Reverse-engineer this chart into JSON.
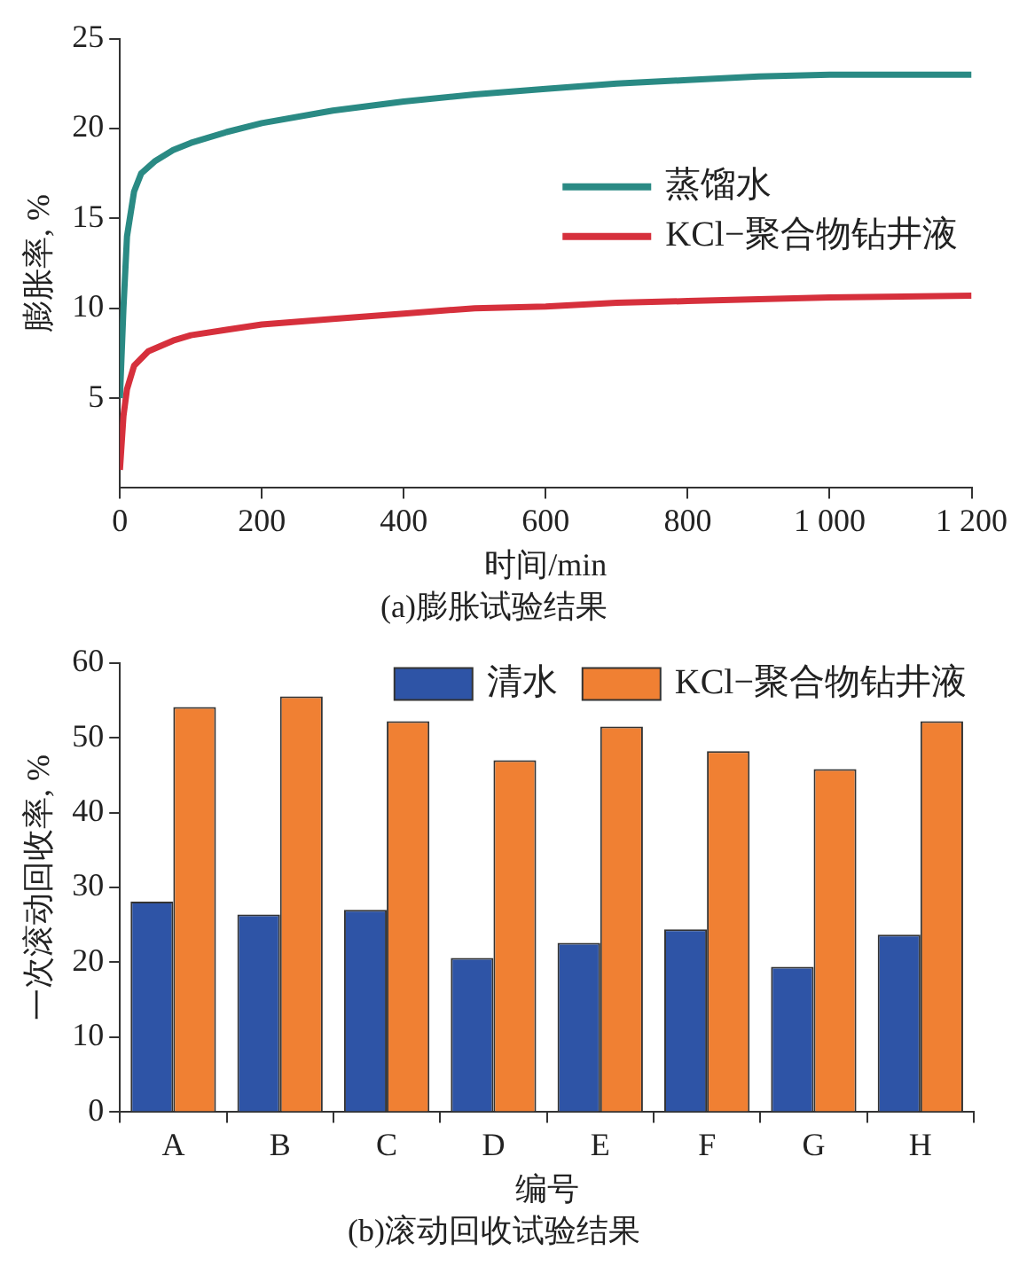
{
  "chart_data": [
    {
      "type": "line",
      "title": "(a)膨胀试验结果",
      "xlabel": "时间/min",
      "ylabel": "膨胀率, %",
      "xlim": [
        0,
        1200
      ],
      "ylim": [
        0,
        25
      ],
      "xticks": [
        0,
        200,
        400,
        600,
        800,
        {
          "value": 1000,
          "label": "1 000"
        },
        {
          "value": 1200,
          "label": "1 200"
        }
      ],
      "yticks": [
        5,
        10,
        15,
        20,
        25
      ],
      "grid": false,
      "legend": "right",
      "marker": "none",
      "line_style": "solid",
      "series": [
        {
          "name": "蒸馏水",
          "color": "#2a8a84",
          "x": [
            0,
            5,
            10,
            20,
            30,
            50,
            75,
            100,
            150,
            200,
            300,
            400,
            500,
            600,
            700,
            800,
            900,
            1000,
            1100,
            1200
          ],
          "values": [
            5,
            10,
            14,
            16.5,
            17.5,
            18.2,
            18.8,
            19.2,
            19.8,
            20.3,
            21,
            21.5,
            21.9,
            22.2,
            22.5,
            22.7,
            22.9,
            23,
            23,
            23
          ]
        },
        {
          "name": "KCl−聚合物钻井液",
          "color": "#d6303c",
          "x": [
            0,
            5,
            10,
            20,
            40,
            75,
            100,
            150,
            200,
            300,
            400,
            500,
            600,
            700,
            800,
            900,
            1000,
            1200
          ],
          "values": [
            1,
            4,
            5.5,
            6.8,
            7.6,
            8.2,
            8.5,
            8.8,
            9.1,
            9.4,
            9.7,
            10,
            10.1,
            10.3,
            10.4,
            10.5,
            10.6,
            10.7
          ]
        }
      ]
    },
    {
      "type": "bar",
      "title": "(b)滚动回收试验结果",
      "xlabel": "编号",
      "ylabel": "一次滚动回收率, %",
      "categories": [
        "A",
        "B",
        "C",
        "D",
        "E",
        "F",
        "G",
        "H"
      ],
      "ylim": [
        0,
        60
      ],
      "yticks": [
        0,
        10,
        20,
        30,
        40,
        50,
        60
      ],
      "grid": false,
      "legend": "top right",
      "series": [
        {
          "name": "清水",
          "color": "#2e54a6",
          "values": [
            28.1,
            26.4,
            27,
            20.6,
            22.6,
            24.4,
            19.4,
            23.7
          ]
        },
        {
          "name": "KCl−聚合物钻井液",
          "color": "#f08033",
          "values": [
            54.1,
            55.5,
            52.2,
            47,
            51.5,
            48.2,
            45.8,
            52.2
          ]
        }
      ]
    }
  ]
}
